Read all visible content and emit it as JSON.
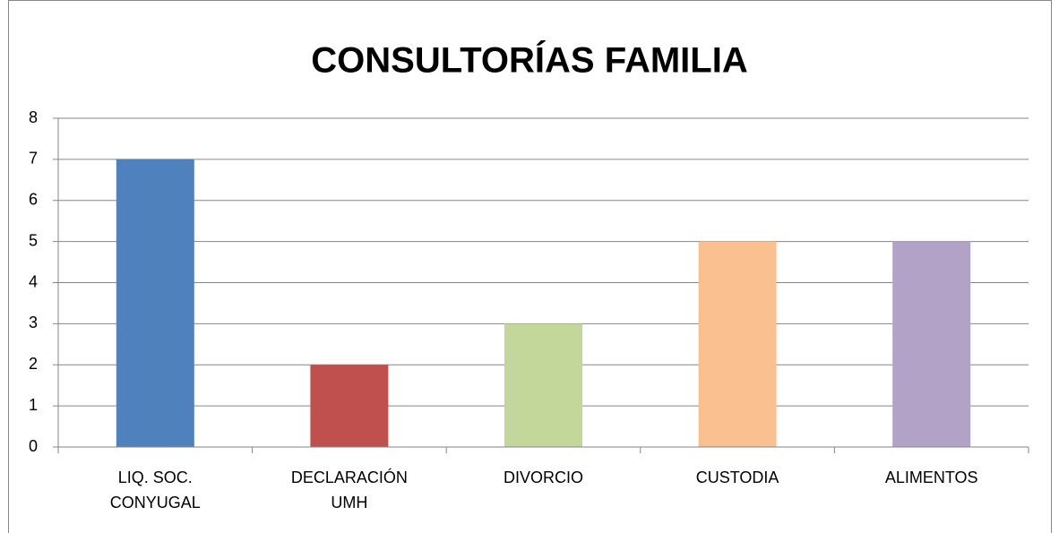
{
  "chart_data": {
    "type": "bar",
    "title": "CONSULTORÍAS FAMILIA",
    "categories": [
      "LIQ. SOC. CONYUGAL",
      "DECLARACIÓN UMH",
      "DIVORCIO",
      "CUSTODIA",
      "ALIMENTOS"
    ],
    "values": [
      7,
      2,
      3,
      5,
      5
    ],
    "colors": [
      "#4f81bd",
      "#c0504d",
      "#c4d79b",
      "#fac090",
      "#b3a2c7"
    ],
    "ylim": [
      0,
      8
    ],
    "yticks": [
      0,
      1,
      2,
      3,
      4,
      5,
      6,
      7,
      8
    ],
    "grid": true
  }
}
